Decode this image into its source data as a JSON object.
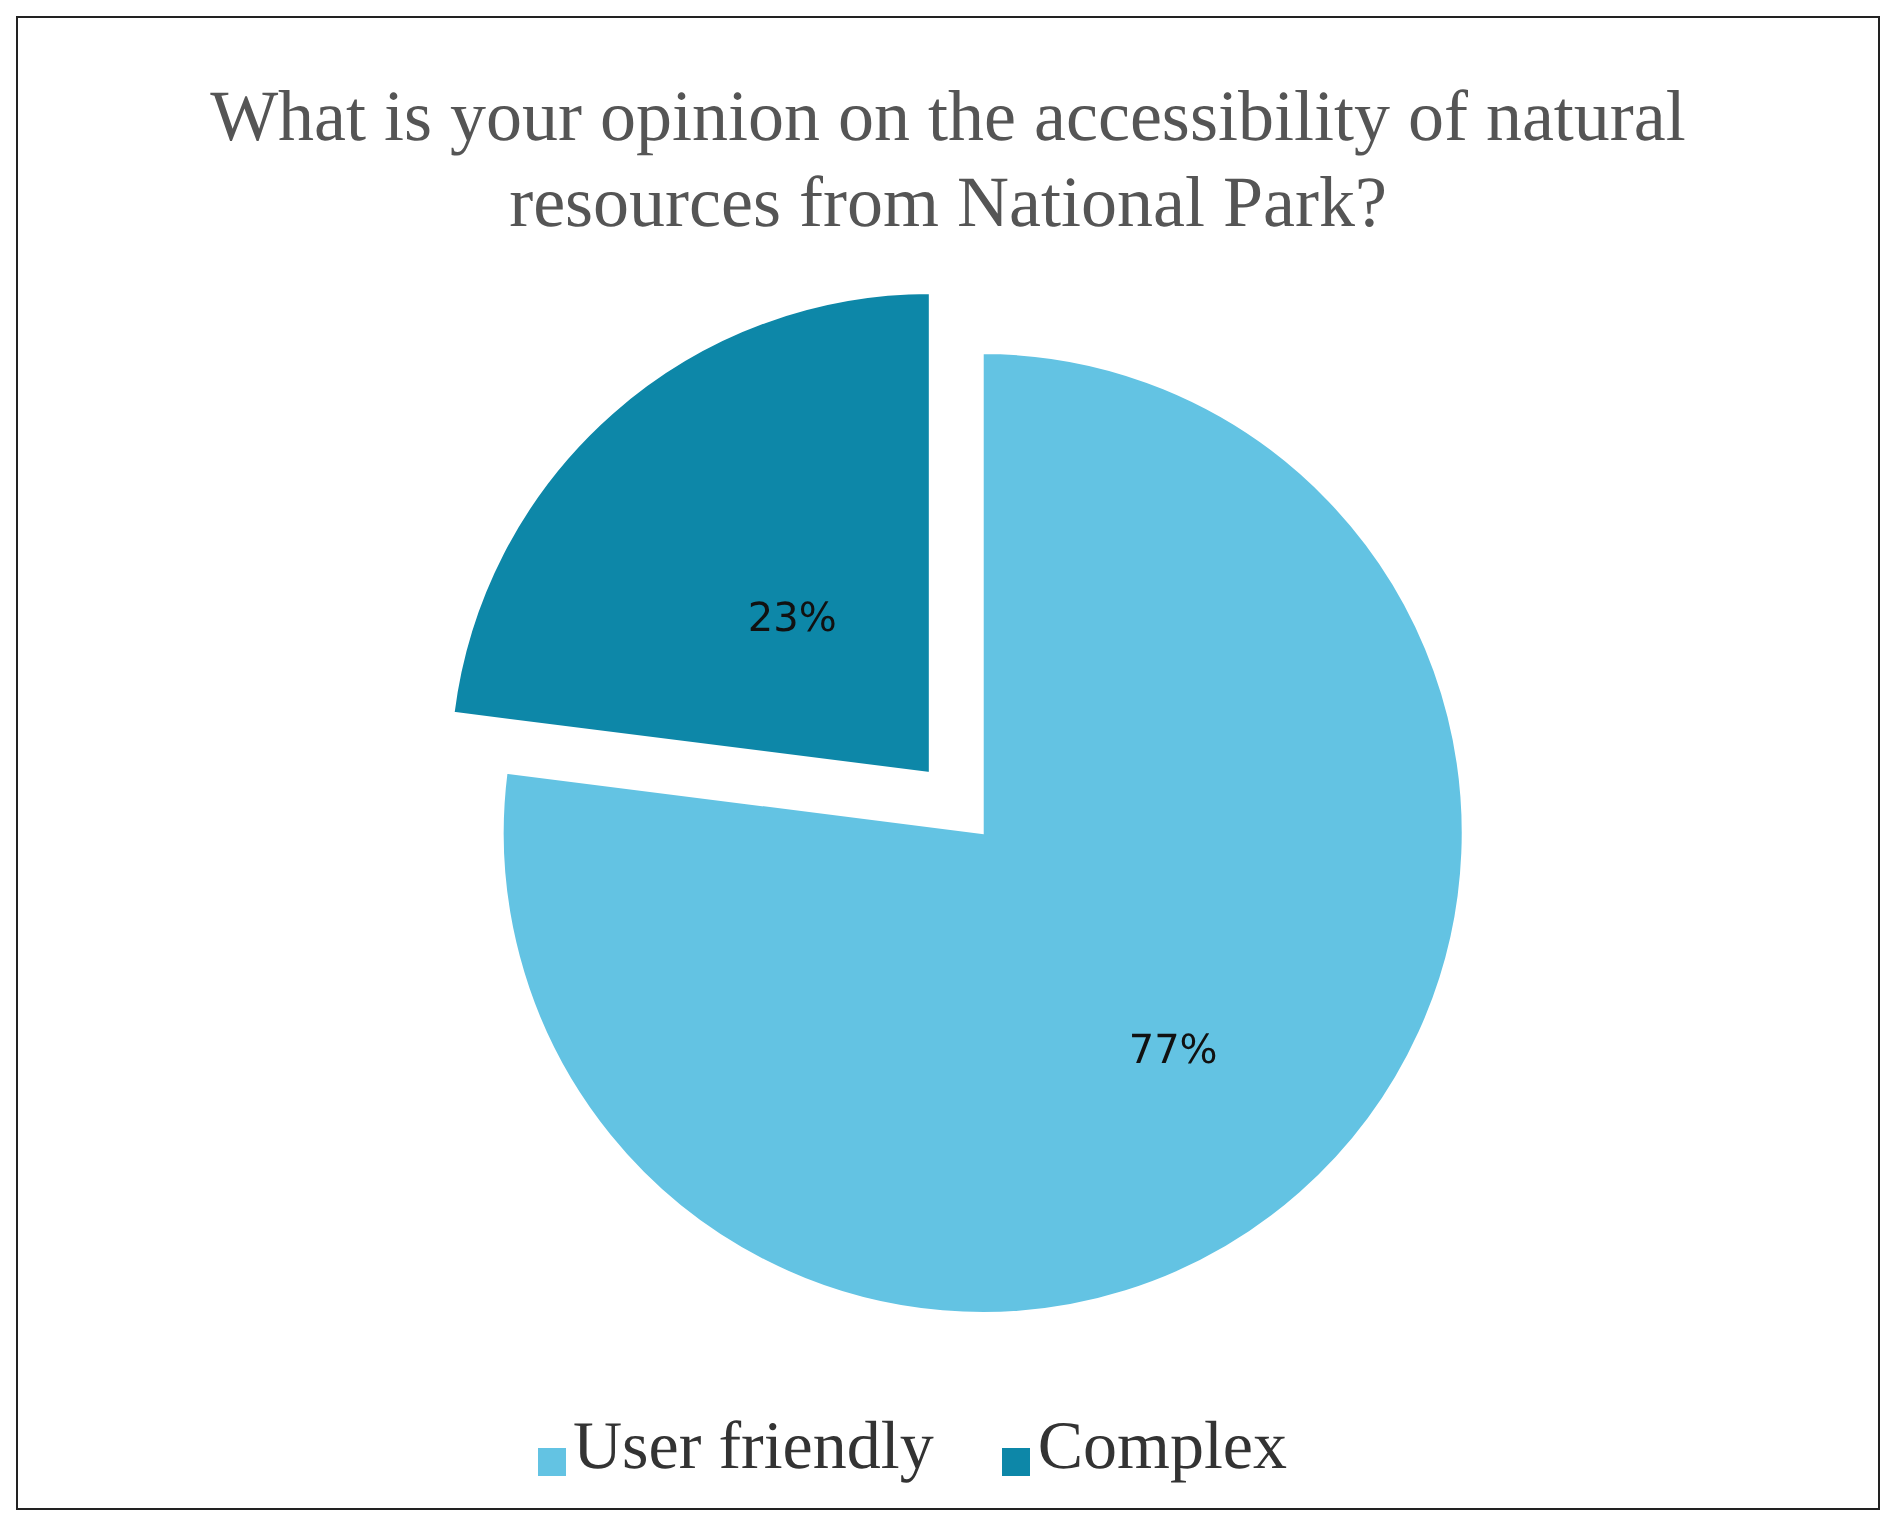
{
  "chart_data": {
    "type": "pie",
    "title": "What is your opinion on the accessibility of natural resources from National Park?",
    "categories": [
      "User friendly",
      "Complex"
    ],
    "values": [
      77,
      23
    ],
    "colors": [
      "#63c3e3",
      "#0d87a8"
    ],
    "value_labels": [
      "77%",
      "23%"
    ],
    "legend": "bottom"
  }
}
